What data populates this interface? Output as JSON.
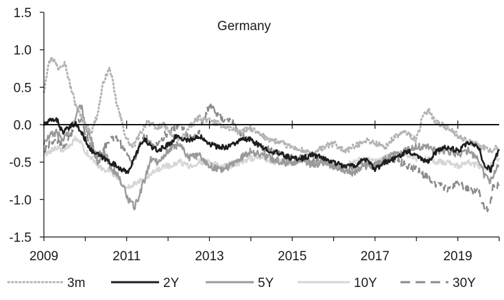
{
  "chart_data": {
    "type": "line",
    "title": "Germany",
    "xlabel": "",
    "ylabel": "",
    "xlim": [
      2009.0,
      2020.0
    ],
    "ylim": [
      -1.5,
      1.5
    ],
    "x_ticks": [
      2009,
      2011,
      2013,
      2015,
      2017,
      2019
    ],
    "x_tick_labels": [
      "2009",
      "2011",
      "2013",
      "2015",
      "2017",
      "2019"
    ],
    "y_ticks": [
      -1.5,
      -1.0,
      -0.5,
      0.0,
      0.5,
      1.0,
      1.5
    ],
    "y_tick_labels": [
      "-1.5",
      "-1.0",
      "-0.5",
      "0.0",
      "0.5",
      "1.0",
      "1.5"
    ],
    "zero_line": true,
    "grid": false,
    "legend_position": "bottom",
    "series": [
      {
        "name": "3m",
        "color": "#b4b4b4",
        "dash": "dotted",
        "x": [
          2009.0,
          2009.1,
          2009.2,
          2009.35,
          2009.5,
          2009.6,
          2009.75,
          2009.9,
          2010.0,
          2010.15,
          2010.3,
          2010.45,
          2010.6,
          2010.75,
          2010.9,
          2011.0,
          2011.15,
          2011.3,
          2011.5,
          2011.7,
          2011.9,
          2012.1,
          2012.3,
          2012.5,
          2012.75,
          2013.0,
          2013.25,
          2013.5,
          2013.75,
          2014.0,
          2014.25,
          2014.5,
          2014.75,
          2015.0,
          2015.25,
          2015.5,
          2015.75,
          2016.0,
          2016.25,
          2016.5,
          2016.75,
          2017.0,
          2017.25,
          2017.5,
          2017.75,
          2018.0,
          2018.15,
          2018.3,
          2018.45,
          2018.6,
          2018.75,
          2018.9,
          2019.0,
          2019.2,
          2019.4,
          2019.6,
          2019.8,
          2020.0
        ],
        "values": [
          0.45,
          0.8,
          0.9,
          0.75,
          0.85,
          0.6,
          0.3,
          0.1,
          0.0,
          -0.1,
          0.15,
          0.6,
          0.75,
          0.3,
          0.0,
          -0.2,
          -0.3,
          -0.15,
          0.05,
          -0.05,
          0.0,
          -0.15,
          -0.2,
          -0.05,
          0.1,
          0.05,
          0.0,
          -0.05,
          -0.1,
          -0.05,
          -0.15,
          -0.2,
          -0.25,
          -0.3,
          -0.35,
          -0.4,
          -0.3,
          -0.25,
          -0.35,
          -0.3,
          -0.2,
          -0.25,
          -0.3,
          -0.15,
          -0.1,
          -0.2,
          0.1,
          0.2,
          0.05,
          0.0,
          -0.05,
          -0.1,
          -0.15,
          -0.2,
          -0.25,
          -0.3,
          -0.35,
          -0.3
        ]
      },
      {
        "name": "2Y",
        "color": "#1e1e1e",
        "dash": "solid",
        "x": [
          2009.0,
          2009.15,
          2009.3,
          2009.45,
          2009.6,
          2009.75,
          2009.9,
          2010.0,
          2010.15,
          2010.3,
          2010.45,
          2010.6,
          2010.75,
          2010.9,
          2011.0,
          2011.15,
          2011.3,
          2011.45,
          2011.6,
          2011.75,
          2011.9,
          2012.05,
          2012.2,
          2012.4,
          2012.6,
          2012.8,
          2013.0,
          2013.2,
          2013.4,
          2013.6,
          2013.8,
          2014.0,
          2014.25,
          2014.5,
          2014.75,
          2015.0,
          2015.25,
          2015.5,
          2015.75,
          2016.0,
          2016.25,
          2016.5,
          2016.75,
          2017.0,
          2017.25,
          2017.5,
          2017.75,
          2018.0,
          2018.25,
          2018.5,
          2018.75,
          2019.0,
          2019.25,
          2019.5,
          2019.65,
          2019.8,
          2019.9,
          2020.0
        ],
        "values": [
          0.0,
          0.05,
          0.08,
          -0.1,
          -0.05,
          0.02,
          -0.1,
          -0.2,
          -0.35,
          -0.4,
          -0.45,
          -0.5,
          -0.55,
          -0.6,
          -0.65,
          -0.5,
          -0.3,
          -0.2,
          -0.3,
          -0.35,
          -0.3,
          -0.25,
          -0.15,
          -0.2,
          -0.2,
          -0.15,
          -0.25,
          -0.3,
          -0.3,
          -0.25,
          -0.2,
          -0.2,
          -0.3,
          -0.35,
          -0.4,
          -0.45,
          -0.45,
          -0.4,
          -0.45,
          -0.5,
          -0.55,
          -0.55,
          -0.45,
          -0.6,
          -0.5,
          -0.45,
          -0.35,
          -0.4,
          -0.5,
          -0.35,
          -0.3,
          -0.35,
          -0.25,
          -0.3,
          -0.55,
          -0.6,
          -0.45,
          -0.35
        ]
      },
      {
        "name": "5Y",
        "color": "#9a9a9a",
        "dash": "solid",
        "x": [
          2009.0,
          2009.15,
          2009.3,
          2009.45,
          2009.6,
          2009.75,
          2009.9,
          2010.0,
          2010.15,
          2010.3,
          2010.45,
          2010.6,
          2010.75,
          2010.9,
          2011.0,
          2011.1,
          2011.2,
          2011.3,
          2011.45,
          2011.6,
          2011.75,
          2011.9,
          2012.1,
          2012.3,
          2012.5,
          2012.75,
          2013.0,
          2013.25,
          2013.5,
          2013.75,
          2014.0,
          2014.25,
          2014.5,
          2014.75,
          2015.0,
          2015.25,
          2015.5,
          2015.75,
          2016.0,
          2016.25,
          2016.5,
          2016.75,
          2017.0,
          2017.25,
          2017.5,
          2017.75,
          2018.0,
          2018.25,
          2018.5,
          2018.75,
          2019.0,
          2019.25,
          2019.5,
          2019.65,
          2019.8,
          2019.9,
          2020.0
        ],
        "values": [
          -0.25,
          -0.15,
          -0.1,
          -0.2,
          -0.1,
          0.1,
          0.25,
          0.0,
          -0.2,
          -0.5,
          -0.35,
          -0.55,
          -0.65,
          -0.8,
          -0.95,
          -1.05,
          -1.1,
          -0.95,
          -0.7,
          -0.45,
          -0.5,
          -0.4,
          -0.3,
          -0.25,
          -0.45,
          -0.4,
          -0.55,
          -0.6,
          -0.55,
          -0.45,
          -0.35,
          -0.4,
          -0.45,
          -0.5,
          -0.5,
          -0.45,
          -0.55,
          -0.5,
          -0.55,
          -0.6,
          -0.65,
          -0.55,
          -0.55,
          -0.45,
          -0.4,
          -0.35,
          -0.3,
          -0.3,
          -0.35,
          -0.35,
          -0.4,
          -0.35,
          -0.45,
          -0.7,
          -0.75,
          -0.6,
          -0.55
        ]
      },
      {
        "name": "10Y",
        "color": "#d6d6d6",
        "dash": "solid",
        "x": [
          2009.0,
          2009.15,
          2009.3,
          2009.45,
          2009.6,
          2009.75,
          2009.9,
          2010.0,
          2010.15,
          2010.3,
          2010.45,
          2010.6,
          2010.75,
          2010.9,
          2011.0,
          2011.15,
          2011.3,
          2011.45,
          2011.6,
          2011.75,
          2011.9,
          2012.1,
          2012.3,
          2012.5,
          2012.75,
          2013.0,
          2013.25,
          2013.5,
          2013.75,
          2014.0,
          2014.25,
          2014.5,
          2014.75,
          2015.0,
          2015.25,
          2015.5,
          2015.75,
          2016.0,
          2016.25,
          2016.5,
          2016.75,
          2017.0,
          2017.25,
          2017.5,
          2017.75,
          2018.0,
          2018.25,
          2018.5,
          2018.75,
          2019.0,
          2019.25,
          2019.5,
          2019.7,
          2019.85,
          2020.0
        ],
        "values": [
          -0.4,
          -0.35,
          -0.3,
          -0.35,
          -0.3,
          -0.2,
          -0.25,
          -0.35,
          -0.45,
          -0.55,
          -0.6,
          -0.6,
          -0.7,
          -0.8,
          -0.85,
          -0.8,
          -0.75,
          -0.7,
          -0.65,
          -0.6,
          -0.55,
          -0.55,
          -0.5,
          -0.55,
          -0.5,
          -0.5,
          -0.55,
          -0.55,
          -0.5,
          -0.45,
          -0.45,
          -0.5,
          -0.5,
          -0.5,
          -0.45,
          -0.5,
          -0.5,
          -0.55,
          -0.55,
          -0.5,
          -0.45,
          -0.5,
          -0.45,
          -0.4,
          -0.4,
          -0.45,
          -0.45,
          -0.5,
          -0.5,
          -0.55,
          -0.5,
          -0.55,
          -0.6,
          -0.5,
          -0.45
        ]
      },
      {
        "name": "30Y",
        "color": "#8a8a8a",
        "dash": "dashed",
        "x": [
          2009.0,
          2009.15,
          2009.3,
          2009.45,
          2009.6,
          2009.75,
          2009.9,
          2010.0,
          2010.15,
          2010.3,
          2010.45,
          2010.6,
          2010.75,
          2010.9,
          2011.0,
          2011.15,
          2011.3,
          2011.45,
          2011.6,
          2011.75,
          2011.9,
          2012.1,
          2012.3,
          2012.5,
          2012.75,
          2013.0,
          2013.25,
          2013.5,
          2013.75,
          2014.0,
          2014.25,
          2014.5,
          2014.75,
          2015.0,
          2015.25,
          2015.5,
          2015.75,
          2016.0,
          2016.25,
          2016.5,
          2016.75,
          2017.0,
          2017.25,
          2017.5,
          2017.75,
          2018.0,
          2018.25,
          2018.5,
          2018.75,
          2019.0,
          2019.25,
          2019.5,
          2019.65,
          2019.75,
          2019.85,
          2020.0
        ],
        "values": [
          -0.35,
          -0.25,
          -0.2,
          -0.3,
          -0.2,
          0.0,
          0.1,
          -0.1,
          -0.3,
          -0.45,
          -0.3,
          -0.2,
          -0.15,
          -0.3,
          -0.4,
          -0.5,
          -0.3,
          -0.15,
          -0.25,
          -0.3,
          -0.15,
          -0.05,
          0.0,
          -0.2,
          -0.1,
          0.25,
          0.1,
          0.05,
          -0.1,
          -0.2,
          -0.3,
          -0.35,
          -0.4,
          -0.45,
          -0.45,
          -0.5,
          -0.45,
          -0.55,
          -0.6,
          -0.6,
          -0.5,
          -0.55,
          -0.5,
          -0.45,
          -0.55,
          -0.6,
          -0.7,
          -0.8,
          -0.85,
          -0.8,
          -0.85,
          -0.9,
          -1.1,
          -1.15,
          -0.85,
          -0.8
        ]
      }
    ]
  }
}
